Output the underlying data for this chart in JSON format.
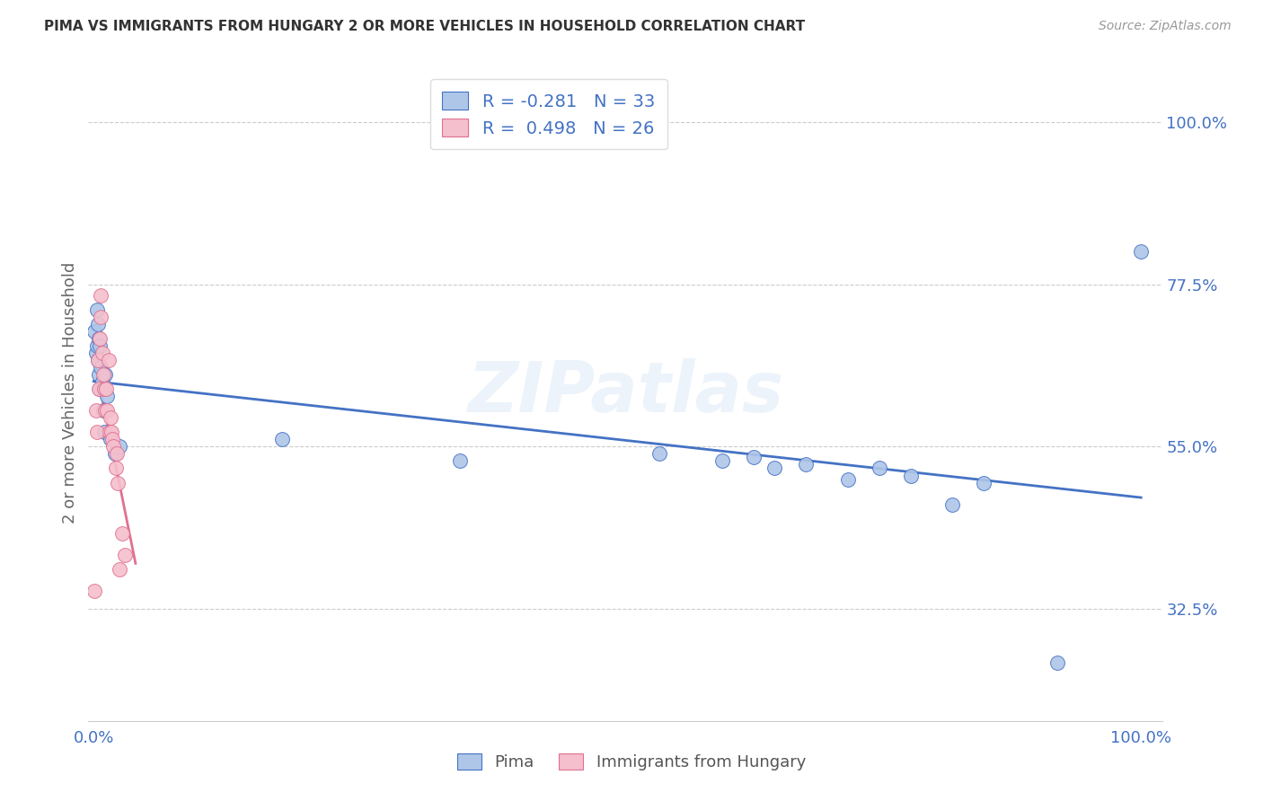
{
  "title": "PIMA VS IMMIGRANTS FROM HUNGARY 2 OR MORE VEHICLES IN HOUSEHOLD CORRELATION CHART",
  "source": "Source: ZipAtlas.com",
  "ylabel": "2 or more Vehicles in Household",
  "yticks": [
    "32.5%",
    "55.0%",
    "77.5%",
    "100.0%"
  ],
  "ytick_vals": [
    0.325,
    0.55,
    0.775,
    1.0
  ],
  "xlim": [
    -0.005,
    1.02
  ],
  "ylim": [
    0.17,
    1.08
  ],
  "legend1_R": "-0.281",
  "legend1_N": "33",
  "legend2_R": "0.498",
  "legend2_N": "26",
  "color_blue": "#aec6e8",
  "color_pink": "#f5bfcd",
  "line_blue": "#4472c4",
  "line_pink": "#e07090",
  "pima_x": [
    0.001,
    0.002,
    0.003,
    0.003,
    0.004,
    0.004,
    0.005,
    0.005,
    0.006,
    0.006,
    0.007,
    0.008,
    0.009,
    0.01,
    0.011,
    0.013,
    0.016,
    0.02,
    0.025,
    0.18,
    0.35,
    0.54,
    0.6,
    0.63,
    0.65,
    0.68,
    0.72,
    0.75,
    0.78,
    0.82,
    0.85,
    0.92,
    1.0
  ],
  "pima_y": [
    0.71,
    0.68,
    0.74,
    0.69,
    0.72,
    0.67,
    0.65,
    0.7,
    0.63,
    0.69,
    0.66,
    0.64,
    0.6,
    0.57,
    0.65,
    0.62,
    0.56,
    0.54,
    0.55,
    0.56,
    0.53,
    0.54,
    0.53,
    0.535,
    0.52,
    0.525,
    0.505,
    0.52,
    0.51,
    0.47,
    0.5,
    0.25,
    0.82
  ],
  "hungary_x": [
    0.001,
    0.002,
    0.003,
    0.004,
    0.005,
    0.006,
    0.007,
    0.007,
    0.008,
    0.009,
    0.01,
    0.011,
    0.012,
    0.013,
    0.014,
    0.015,
    0.016,
    0.017,
    0.018,
    0.019,
    0.021,
    0.022,
    0.023,
    0.025,
    0.027,
    0.03
  ],
  "hungary_y": [
    0.35,
    0.6,
    0.57,
    0.67,
    0.63,
    0.7,
    0.73,
    0.76,
    0.68,
    0.65,
    0.63,
    0.6,
    0.63,
    0.6,
    0.67,
    0.57,
    0.59,
    0.57,
    0.56,
    0.55,
    0.52,
    0.54,
    0.5,
    0.38,
    0.43,
    0.4
  ]
}
